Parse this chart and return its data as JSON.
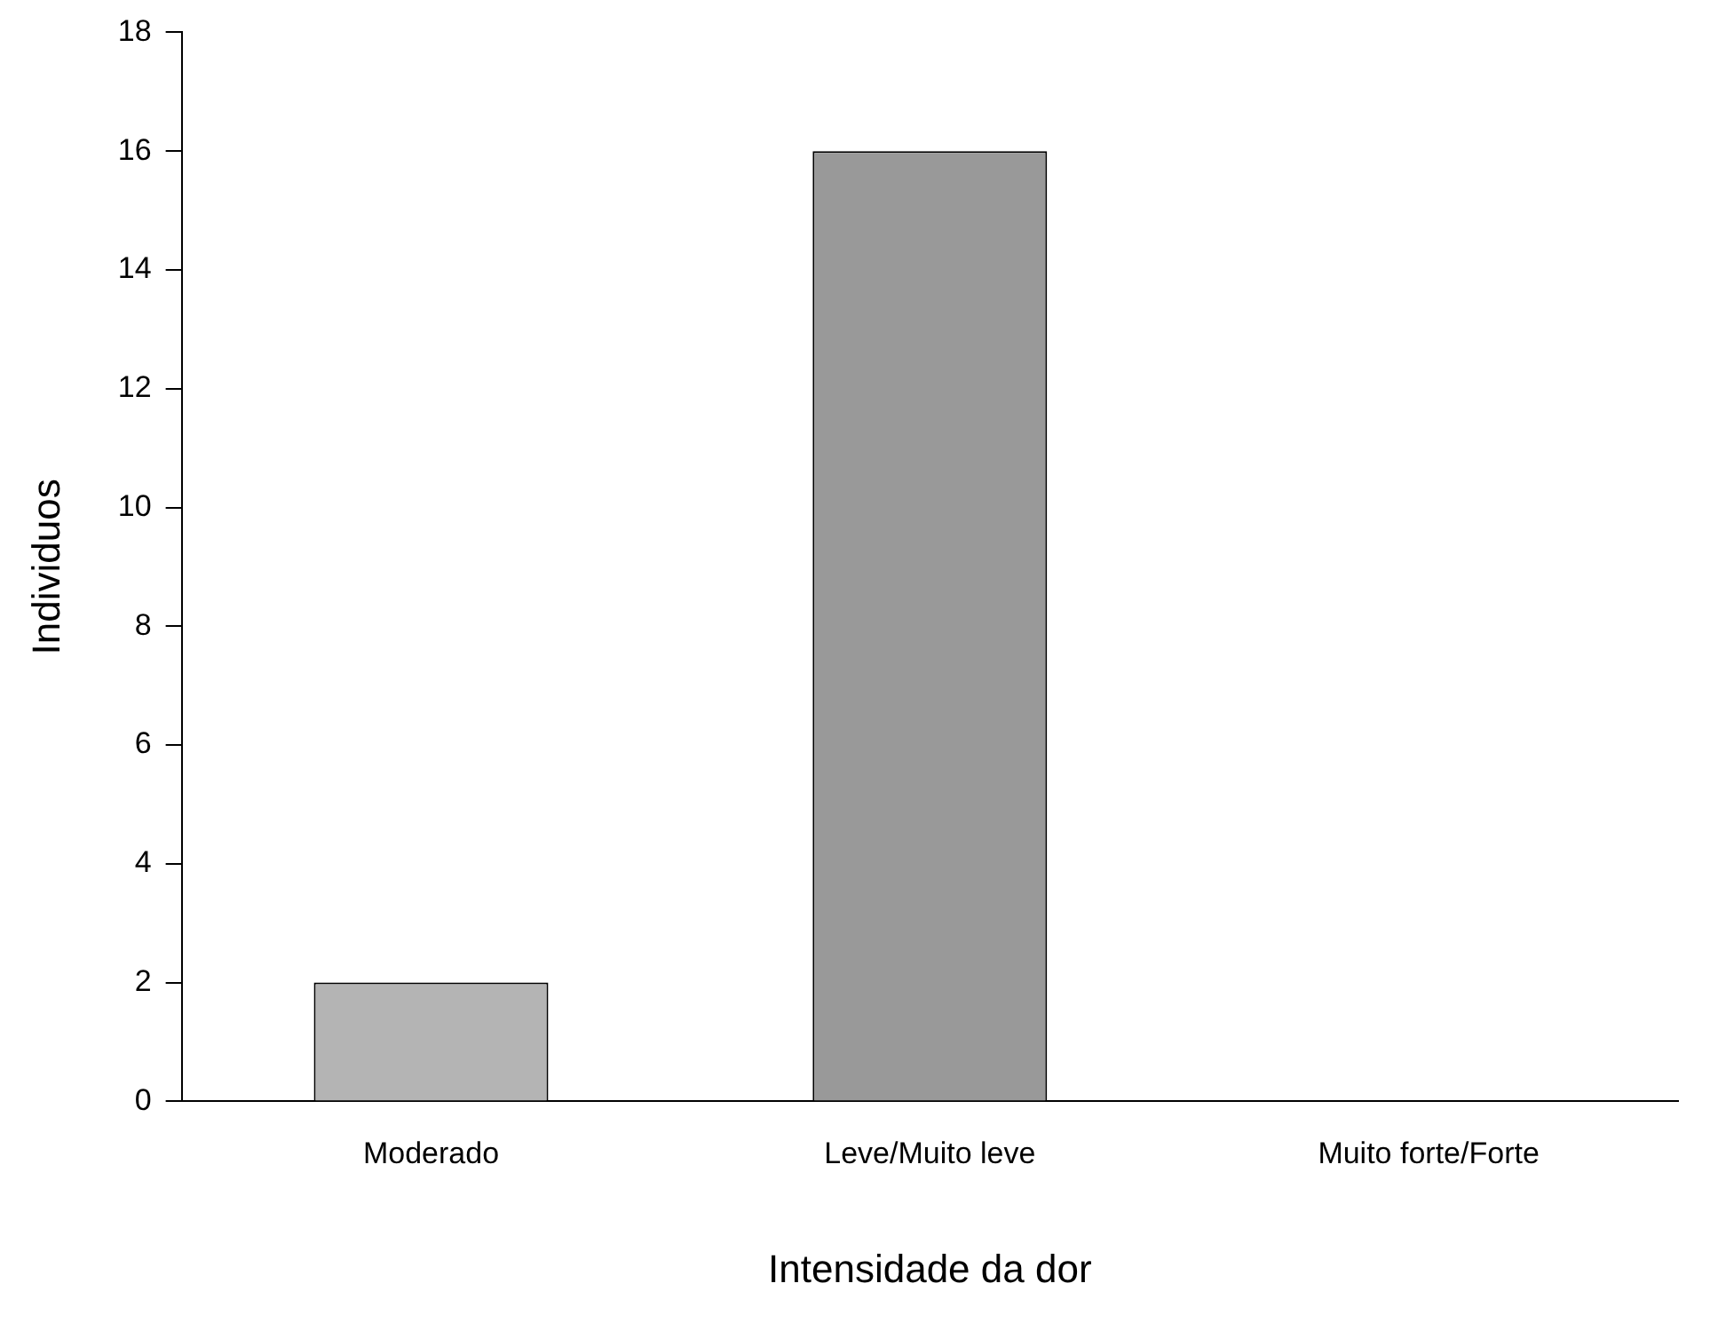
{
  "chart_data": {
    "type": "bar",
    "xlabel": "Intensidade da dor",
    "ylabel": "Individuos",
    "categories": [
      "Moderado",
      "Leve/Muito leve",
      "Muito forte/Forte"
    ],
    "values": [
      2,
      16,
      0
    ],
    "colors": [
      "#b4b4b4",
      "#999999",
      "#999999"
    ],
    "ylim": [
      0,
      18
    ],
    "yticks": [
      0,
      2,
      4,
      6,
      8,
      10,
      12,
      14,
      16,
      18
    ],
    "grid": false,
    "legend": false
  }
}
